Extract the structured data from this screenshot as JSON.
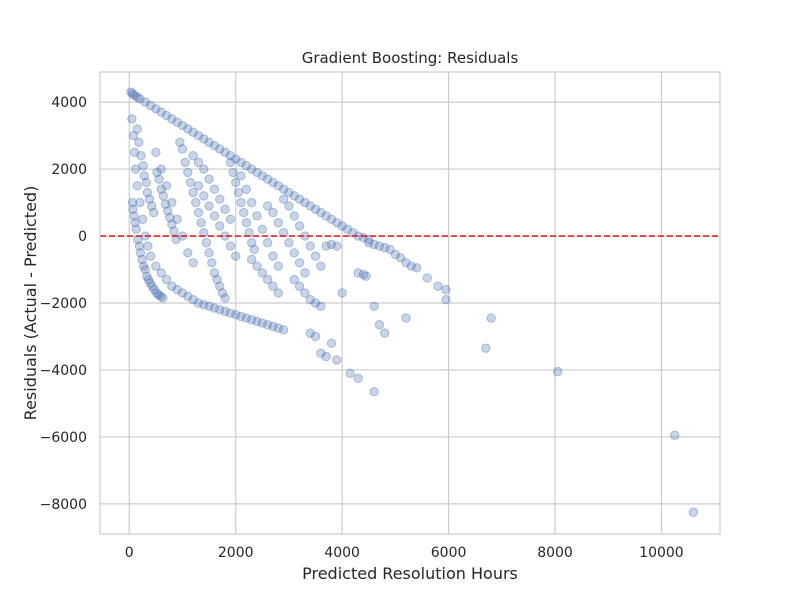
{
  "chart_data": {
    "type": "scatter",
    "title": "Gradient Boosting: Residuals",
    "xlabel": "Predicted Resolution Hours",
    "ylabel": "Residuals (Actual - Predicted)",
    "xlim": [
      -550,
      11100
    ],
    "ylim": [
      -8900,
      4900
    ],
    "xticks": [
      0,
      2000,
      4000,
      6000,
      8000,
      10000
    ],
    "yticks": [
      -8000,
      -6000,
      -4000,
      -2000,
      0,
      2000,
      4000
    ],
    "grid": true,
    "reference_line": {
      "y": 0,
      "style": "dashed",
      "color": "#d62728"
    },
    "point_color": "#4c72b0",
    "point_alpha": 0.3,
    "points": [
      [
        30,
        4300
      ],
      [
        60,
        4250
      ],
      [
        100,
        4200
      ],
      [
        150,
        4150
      ],
      [
        200,
        4100
      ],
      [
        300,
        4000
      ],
      [
        400,
        3900
      ],
      [
        500,
        3800
      ],
      [
        600,
        3700
      ],
      [
        700,
        3600
      ],
      [
        800,
        3500
      ],
      [
        900,
        3400
      ],
      [
        1000,
        3300
      ],
      [
        1100,
        3200
      ],
      [
        1200,
        3100
      ],
      [
        1300,
        3000
      ],
      [
        1400,
        2900
      ],
      [
        1500,
        2800
      ],
      [
        1600,
        2700
      ],
      [
        1700,
        2600
      ],
      [
        1800,
        2500
      ],
      [
        1900,
        2400
      ],
      [
        2000,
        2300
      ],
      [
        2100,
        2200
      ],
      [
        2200,
        2100
      ],
      [
        2300,
        2000
      ],
      [
        2400,
        1900
      ],
      [
        2500,
        1800
      ],
      [
        2600,
        1700
      ],
      [
        2700,
        1600
      ],
      [
        2800,
        1500
      ],
      [
        2900,
        1400
      ],
      [
        3000,
        1300
      ],
      [
        3100,
        1200
      ],
      [
        3200,
        1100
      ],
      [
        3300,
        1000
      ],
      [
        3400,
        900
      ],
      [
        3500,
        800
      ],
      [
        3600,
        700
      ],
      [
        3700,
        600
      ],
      [
        3800,
        500
      ],
      [
        3900,
        400
      ],
      [
        4000,
        300
      ],
      [
        4100,
        200
      ],
      [
        4200,
        100
      ],
      [
        4300,
        0
      ],
      [
        4400,
        -50
      ],
      [
        4500,
        -100
      ],
      [
        50,
        3500
      ],
      [
        80,
        3000
      ],
      [
        100,
        2500
      ],
      [
        120,
        2000
      ],
      [
        150,
        1500
      ],
      [
        200,
        1000
      ],
      [
        250,
        500
      ],
      [
        300,
        0
      ],
      [
        350,
        -300
      ],
      [
        400,
        -600
      ],
      [
        500,
        -900
      ],
      [
        600,
        -1100
      ],
      [
        700,
        -1300
      ],
      [
        800,
        -1500
      ],
      [
        900,
        -1600
      ],
      [
        1000,
        -1700
      ],
      [
        1100,
        -1800
      ],
      [
        1200,
        -1900
      ],
      [
        1300,
        -2000
      ],
      [
        1400,
        -2050
      ],
      [
        1500,
        -2100
      ],
      [
        1600,
        -2150
      ],
      [
        1700,
        -2200
      ],
      [
        1800,
        -2250
      ],
      [
        1900,
        -2300
      ],
      [
        2000,
        -2350
      ],
      [
        2100,
        -2400
      ],
      [
        2200,
        -2450
      ],
      [
        2300,
        -2500
      ],
      [
        2400,
        -2550
      ],
      [
        2500,
        -2600
      ],
      [
        2600,
        -2650
      ],
      [
        2700,
        -2700
      ],
      [
        2800,
        -2750
      ],
      [
        2900,
        -2800
      ],
      [
        500,
        2500
      ],
      [
        600,
        2000
      ],
      [
        700,
        1500
      ],
      [
        800,
        1000
      ],
      [
        900,
        500
      ],
      [
        1000,
        0
      ],
      [
        1100,
        -500
      ],
      [
        1200,
        -800
      ],
      [
        1300,
        1500
      ],
      [
        1400,
        1200
      ],
      [
        1500,
        900
      ],
      [
        1600,
        600
      ],
      [
        1700,
        300
      ],
      [
        1800,
        0
      ],
      [
        1900,
        -300
      ],
      [
        2000,
        -600
      ],
      [
        2100,
        1800
      ],
      [
        2200,
        1400
      ],
      [
        2300,
        1000
      ],
      [
        2400,
        600
      ],
      [
        2500,
        200
      ],
      [
        2600,
        -200
      ],
      [
        2700,
        -600
      ],
      [
        2800,
        -900
      ],
      [
        2300,
        -700
      ],
      [
        2400,
        -900
      ],
      [
        2500,
        -1100
      ],
      [
        2600,
        -1300
      ],
      [
        2700,
        -1500
      ],
      [
        2800,
        -1700
      ],
      [
        2600,
        900
      ],
      [
        2700,
        700
      ],
      [
        2800,
        400
      ],
      [
        2900,
        100
      ],
      [
        3000,
        -200
      ],
      [
        3100,
        -500
      ],
      [
        3200,
        -800
      ],
      [
        3300,
        -1100
      ],
      [
        2900,
        1100
      ],
      [
        3000,
        900
      ],
      [
        3100,
        600
      ],
      [
        3200,
        300
      ],
      [
        3300,
        0
      ],
      [
        3400,
        -300
      ],
      [
        3500,
        -600
      ],
      [
        3600,
        -900
      ],
      [
        3100,
        -1300
      ],
      [
        3200,
        -1500
      ],
      [
        3300,
        -1700
      ],
      [
        3400,
        -1900
      ],
      [
        3500,
        -2000
      ],
      [
        3600,
        -2100
      ],
      [
        3400,
        -2900
      ],
      [
        3500,
        -3000
      ],
      [
        3600,
        -3500
      ],
      [
        3700,
        -3600
      ],
      [
        3800,
        -3200
      ],
      [
        3900,
        -3700
      ],
      [
        3700,
        -300
      ],
      [
        3800,
        -250
      ],
      [
        3900,
        -300
      ],
      [
        4000,
        -1700
      ],
      [
        4150,
        -4100
      ],
      [
        4300,
        -4250
      ],
      [
        4600,
        -4650
      ],
      [
        4300,
        -1100
      ],
      [
        4400,
        -1150
      ],
      [
        4450,
        -1200
      ],
      [
        4600,
        -2100
      ],
      [
        4700,
        -2650
      ],
      [
        4800,
        -2900
      ],
      [
        4500,
        -200
      ],
      [
        4600,
        -250
      ],
      [
        4700,
        -300
      ],
      [
        4800,
        -350
      ],
      [
        4900,
        -400
      ],
      [
        5000,
        -550
      ],
      [
        5100,
        -650
      ],
      [
        5200,
        -800
      ],
      [
        5300,
        -900
      ],
      [
        5400,
        -950
      ],
      [
        5200,
        -2450
      ],
      [
        5600,
        -1250
      ],
      [
        5800,
        -1500
      ],
      [
        5950,
        -1600
      ],
      [
        5950,
        -1900
      ],
      [
        6700,
        -3350
      ],
      [
        6800,
        -2450
      ],
      [
        8050,
        -4050
      ],
      [
        10250,
        -5950
      ],
      [
        10600,
        -8250
      ],
      [
        150,
        3200
      ],
      [
        180,
        2800
      ],
      [
        220,
        2400
      ],
      [
        260,
        2100
      ],
      [
        280,
        1800
      ],
      [
        320,
        1600
      ],
      [
        340,
        1300
      ],
      [
        380,
        1100
      ],
      [
        420,
        900
      ],
      [
        460,
        700
      ],
      [
        520,
        1900
      ],
      [
        560,
        1700
      ],
      [
        600,
        1400
      ],
      [
        640,
        1200
      ],
      [
        680,
        950
      ],
      [
        720,
        750
      ],
      [
        760,
        550
      ],
      [
        800,
        350
      ],
      [
        840,
        150
      ],
      [
        880,
        -100
      ],
      [
        950,
        2800
      ],
      [
        1000,
        2600
      ],
      [
        1050,
        2200
      ],
      [
        1100,
        1900
      ],
      [
        1150,
        1600
      ],
      [
        1200,
        1300
      ],
      [
        1250,
        1000
      ],
      [
        1300,
        700
      ],
      [
        1350,
        400
      ],
      [
        1400,
        100
      ],
      [
        1450,
        -200
      ],
      [
        1500,
        -500
      ],
      [
        1550,
        -800
      ],
      [
        1600,
        -1100
      ],
      [
        1650,
        -1300
      ],
      [
        1700,
        -1500
      ],
      [
        1750,
        -1700
      ],
      [
        1800,
        -1850
      ],
      [
        1900,
        2200
      ],
      [
        1950,
        1900
      ],
      [
        2000,
        1600
      ],
      [
        2050,
        1300
      ],
      [
        2100,
        1000
      ],
      [
        2150,
        700
      ],
      [
        2200,
        400
      ],
      [
        2250,
        100
      ],
      [
        2300,
        -200
      ],
      [
        2350,
        -400
      ],
      [
        1200,
        2400
      ],
      [
        1300,
        2200
      ],
      [
        1400,
        2000
      ],
      [
        1500,
        1700
      ],
      [
        1600,
        1400
      ],
      [
        1700,
        1100
      ],
      [
        1800,
        800
      ],
      [
        1900,
        500
      ],
      [
        60,
        1000
      ],
      [
        70,
        800
      ],
      [
        90,
        600
      ],
      [
        110,
        400
      ],
      [
        130,
        200
      ],
      [
        160,
        -100
      ],
      [
        190,
        -300
      ],
      [
        210,
        -500
      ],
      [
        240,
        -700
      ],
      [
        270,
        -900
      ],
      [
        300,
        -1000
      ],
      [
        330,
        -1200
      ],
      [
        360,
        -1300
      ],
      [
        390,
        -1400
      ],
      [
        430,
        -1500
      ],
      [
        470,
        -1600
      ],
      [
        510,
        -1700
      ],
      [
        550,
        -1750
      ],
      [
        590,
        -1800
      ],
      [
        630,
        -1850
      ]
    ]
  }
}
